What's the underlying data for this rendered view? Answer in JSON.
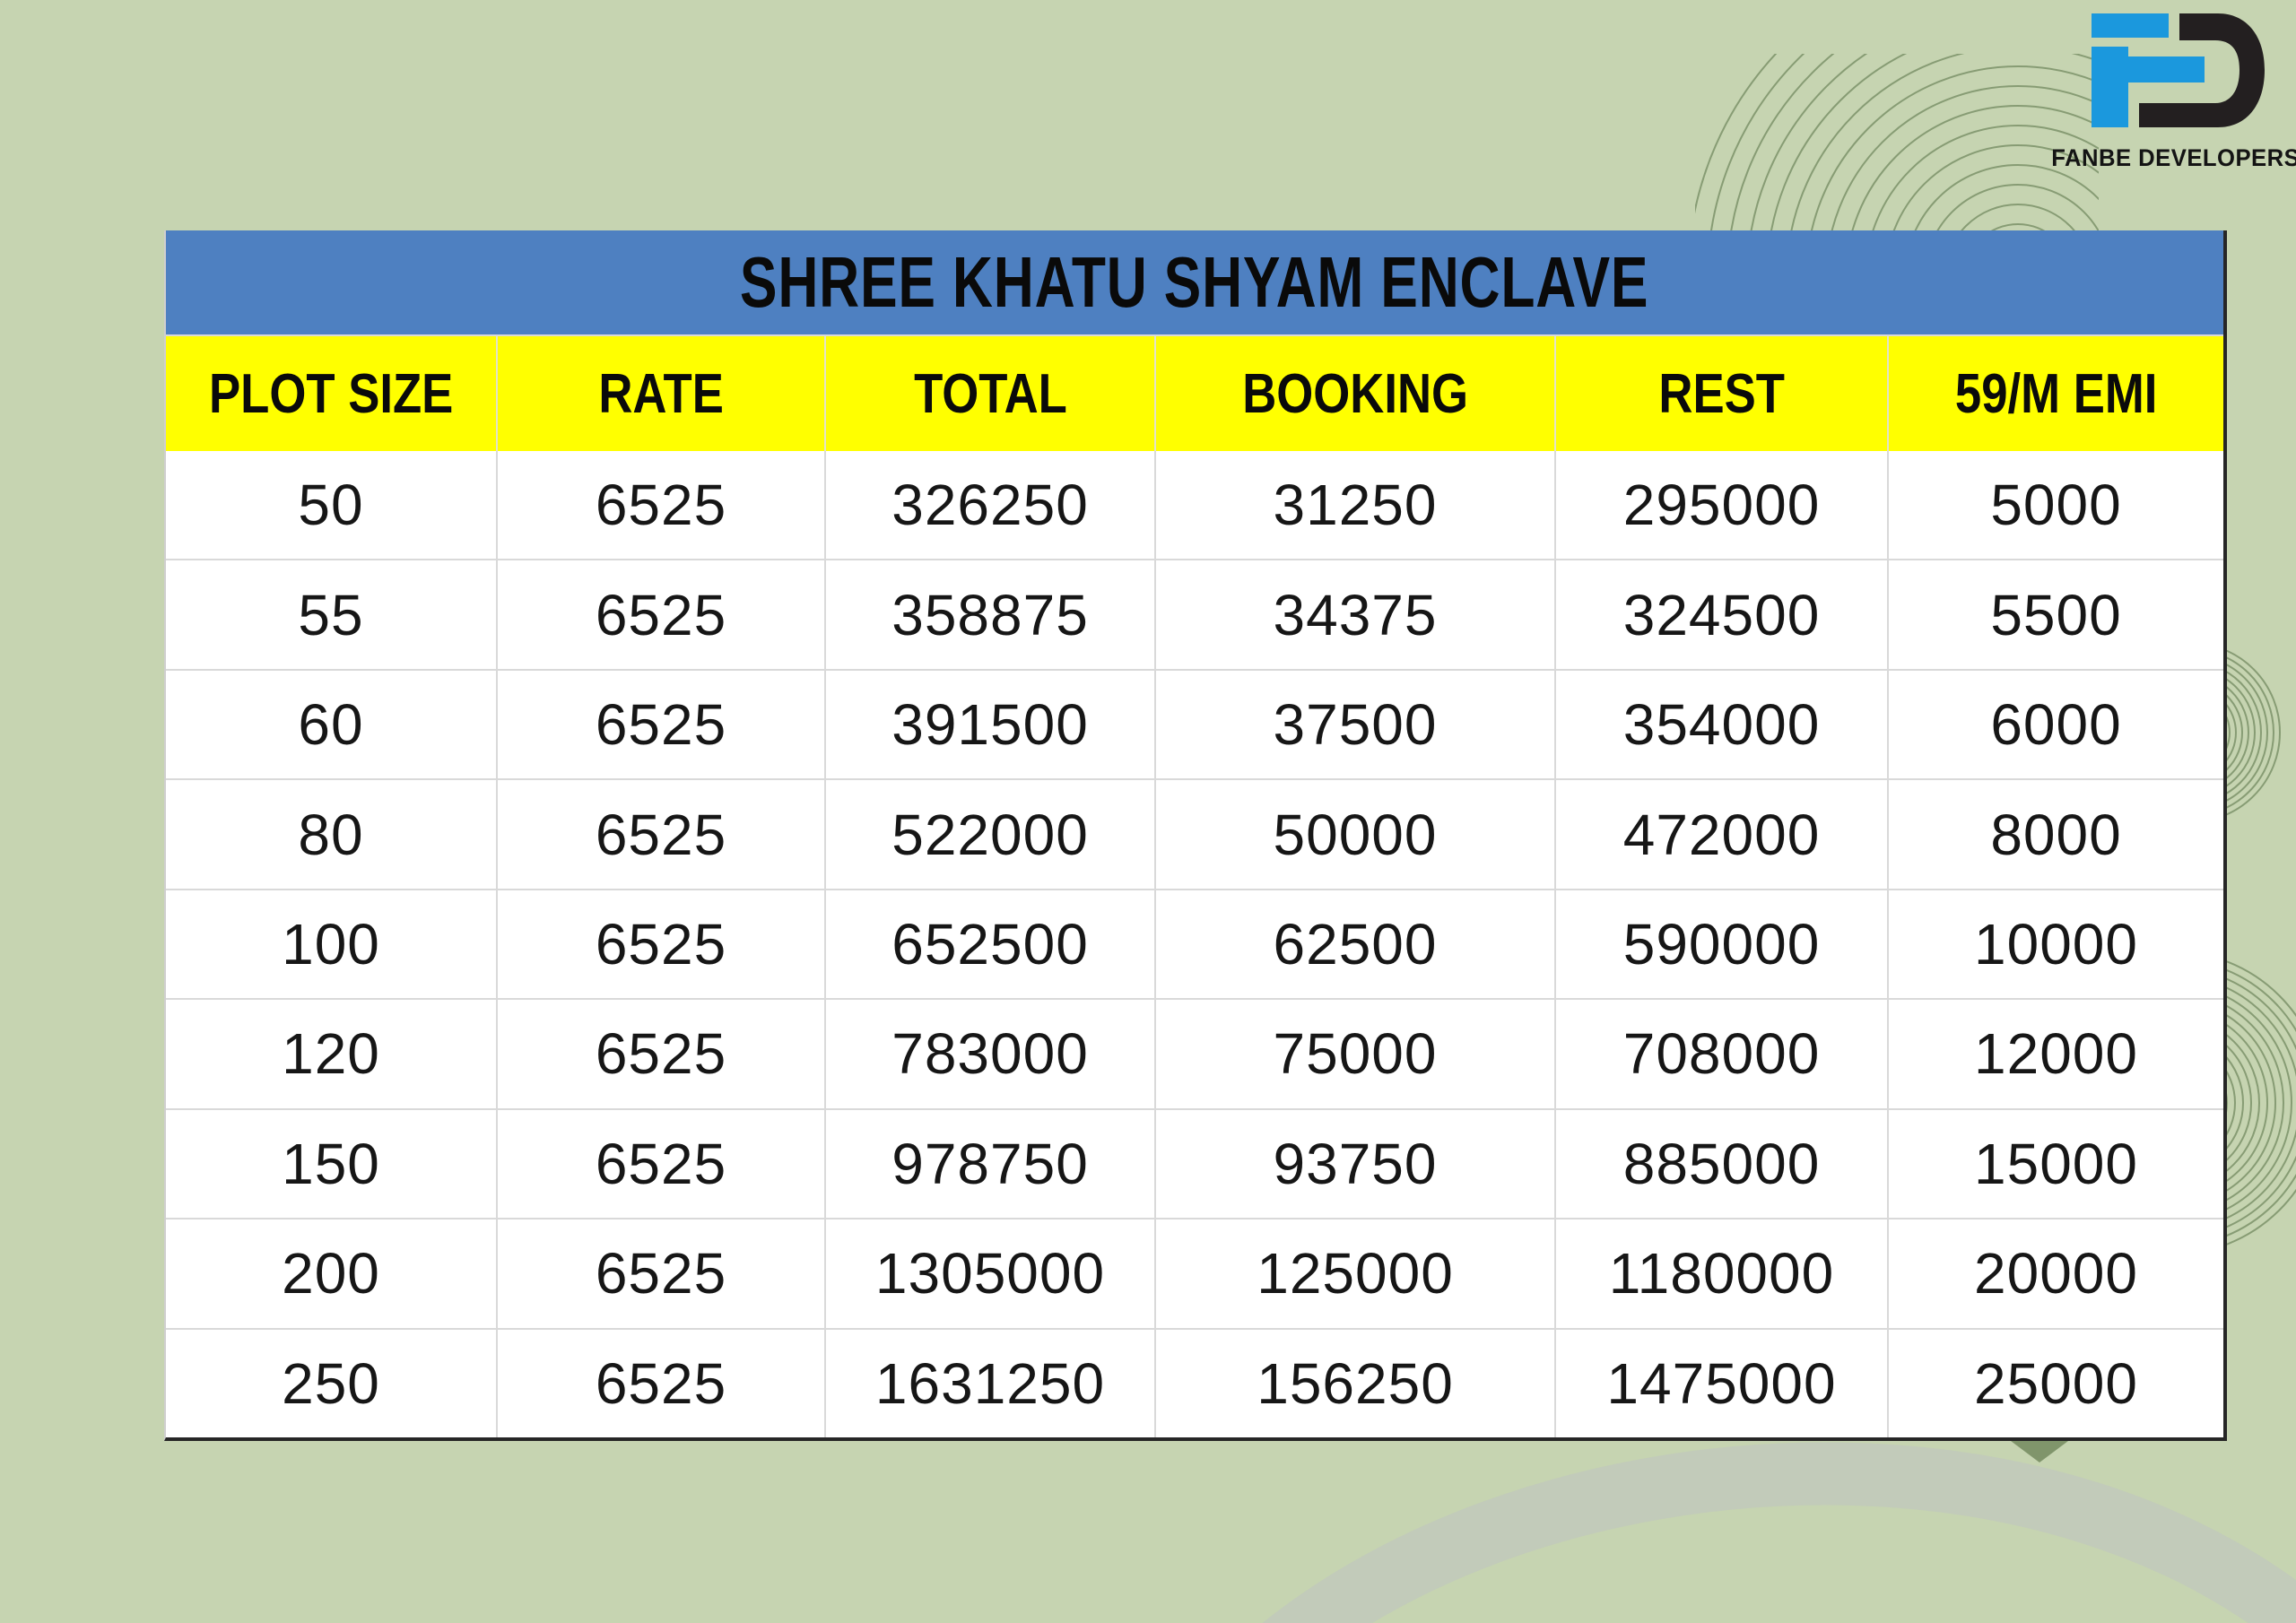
{
  "brand": {
    "name": "FANBE DEVELOPERS"
  },
  "table": {
    "title": "SHREE KHATU SHYAM ENCLAVE",
    "columns": [
      "PLOT SIZE",
      "RATE",
      "TOTAL",
      "BOOKING",
      "REST",
      "59/M EMI"
    ],
    "rows": [
      [
        "50",
        "6525",
        "326250",
        "31250",
        "295000",
        "5000"
      ],
      [
        "55",
        "6525",
        "358875",
        "34375",
        "324500",
        "5500"
      ],
      [
        "60",
        "6525",
        "391500",
        "37500",
        "354000",
        "6000"
      ],
      [
        "80",
        "6525",
        "522000",
        "50000",
        "472000",
        "8000"
      ],
      [
        "100",
        "6525",
        "652500",
        "62500",
        "590000",
        "10000"
      ],
      [
        "120",
        "6525",
        "783000",
        "75000",
        "708000",
        "12000"
      ],
      [
        "150",
        "6525",
        "978750",
        "93750",
        "885000",
        "15000"
      ],
      [
        "200",
        "6525",
        "1305000",
        "125000",
        "1180000",
        "20000"
      ],
      [
        "250",
        "6525",
        "1631250",
        "156250",
        "1475000",
        "25000"
      ]
    ]
  },
  "colors": {
    "page_bg": "#c6d4b1",
    "title_bar_blue": "#4e80c1",
    "header_yellow": "#ffff00",
    "logo_blue": "#1b98dd",
    "logo_black": "#231f20",
    "ring_green": "#879c74"
  }
}
